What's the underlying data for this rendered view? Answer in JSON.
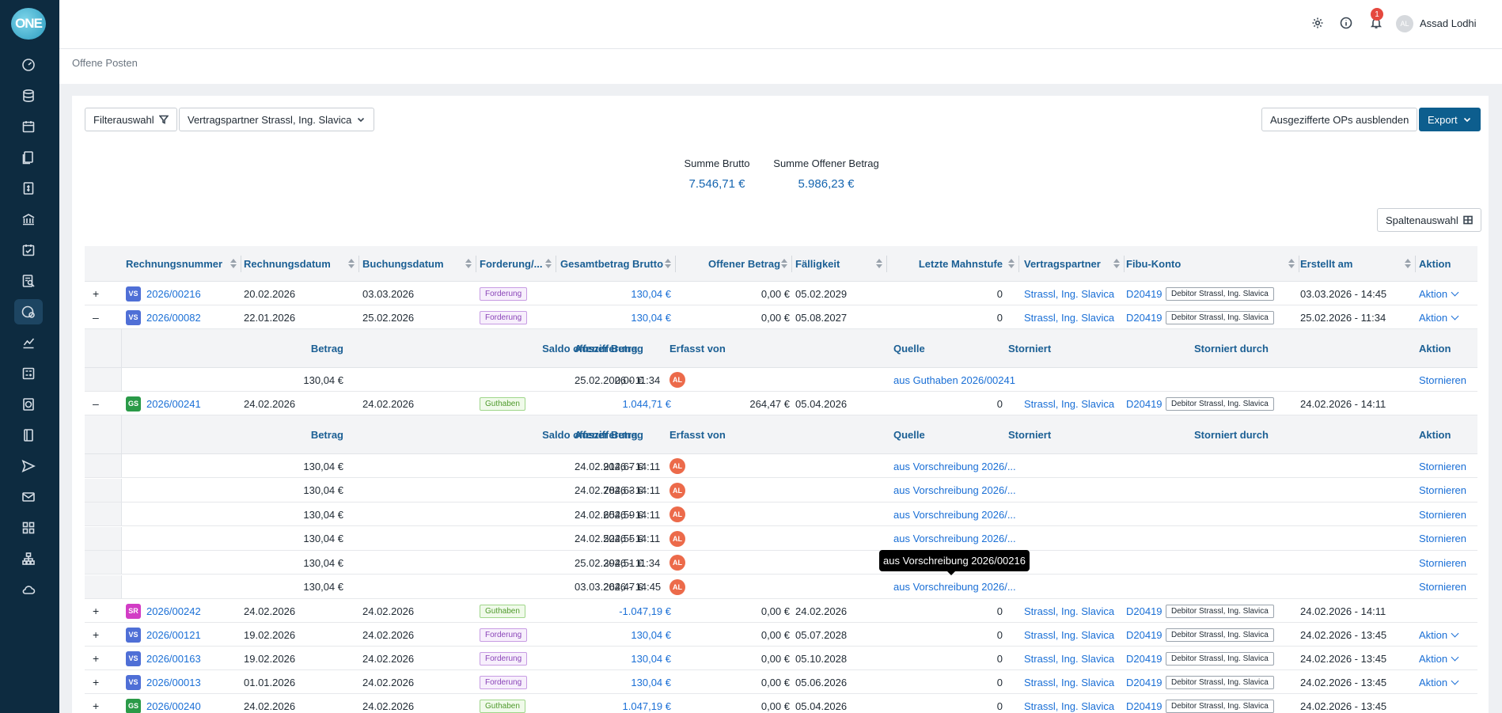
{
  "app": {
    "logo_text": "ONE"
  },
  "sidebar": {
    "icons": [
      "dashboard-icon",
      "database-icon",
      "calendar-icon",
      "documents-icon",
      "invoice-icon",
      "bank-icon",
      "calendar-check-icon",
      "search-report-icon",
      "open-items-icon",
      "chart-icon",
      "calculator-icon",
      "dollar-doc-icon",
      "book-icon",
      "send-icon",
      "mail-icon",
      "apps-icon",
      "org-chart-icon",
      "cloud-icon"
    ]
  },
  "topbar": {
    "notification_count": "1",
    "user_initials": "AL",
    "user_name": "Assad Lodhi"
  },
  "breadcrumb": "Offene Posten",
  "toolbar": {
    "filter_label": "Filterauswahl",
    "partner_filter": "Vertragspartner Strassl, Ing. Slavica",
    "hide_label": "Ausgezifferte OPs ausblenden",
    "export_label": "Export",
    "columns_label": "Spaltenauswahl"
  },
  "summary": {
    "brutto_label": "Summe Brutto",
    "brutto_value": "7.546,71 €",
    "offen_label": "Summe Offener Betrag",
    "offen_value": "5.986,23 €"
  },
  "columns": {
    "nr": "Rechnungsnummer",
    "rdatum": "Rechnungsdatum",
    "bdatum": "Buchungsdatum",
    "ford": "Forderung/...",
    "brutto": "Gesamtbetrag Brutto",
    "offen": "Offener Betrag",
    "faellig": "Fälligkeit",
    "mahn": "Letzte Mahnstufe",
    "partner": "Vertragspartner",
    "fibu": "Fibu-Konto",
    "erstellt": "Erstellt am",
    "aktion": "Aktion"
  },
  "sub_columns": {
    "betrag": "Betrag",
    "saldo": "Saldo offener Betrag",
    "ausz": "Auszifferung",
    "erfasst": "Erfasst von",
    "quelle": "Quelle",
    "storniert": "Storniert",
    "durch": "Storniert durch",
    "aktion": "Aktion"
  },
  "rows": [
    {
      "exp": "+",
      "typ": "VS",
      "nr": "2026/00216",
      "rdatum": "20.02.2026",
      "bdatum": "03.03.2026",
      "ford": "Forderung",
      "brutto": "130,04 €",
      "offen": "0,00 €",
      "faellig": "05.02.2029",
      "mahn": "0",
      "partner": "Strassl, Ing. Slavica",
      "fibu": "D20419",
      "debitor": "Debitor Strassl, Ing. Slavica",
      "erstellt": "03.03.2026 - 14:45",
      "aktion": "Aktion"
    },
    {
      "exp": "–",
      "typ": "VS",
      "nr": "2026/00082",
      "rdatum": "22.01.2026",
      "bdatum": "25.02.2026",
      "ford": "Forderung",
      "brutto": "130,04 €",
      "offen": "0,00 €",
      "faellig": "05.08.2027",
      "mahn": "0",
      "partner": "Strassl, Ing. Slavica",
      "fibu": "D20419",
      "debitor": "Debitor Strassl, Ing. Slavica",
      "erstellt": "25.02.2026 - 11:34",
      "aktion": "Aktion"
    },
    {
      "exp": "–",
      "typ": "GS",
      "nr": "2026/00241",
      "rdatum": "24.02.2026",
      "bdatum": "24.02.2026",
      "ford": "Guthaben",
      "brutto": "1.044,71 €",
      "offen": "264,47 €",
      "faellig": "05.04.2026",
      "mahn": "0",
      "partner": "Strassl, Ing. Slavica",
      "fibu": "D20419",
      "debitor": "Debitor Strassl, Ing. Slavica",
      "erstellt": "24.02.2026 - 14:11",
      "aktion": ""
    },
    {
      "exp": "+",
      "typ": "SR",
      "nr": "2026/00242",
      "rdatum": "24.02.2026",
      "bdatum": "24.02.2026",
      "ford": "Guthaben",
      "brutto": "-1.047,19 €",
      "offen": "0,00 €",
      "faellig": "24.02.2026",
      "mahn": "0",
      "partner": "Strassl, Ing. Slavica",
      "fibu": "D20419",
      "debitor": "Debitor Strassl, Ing. Slavica",
      "erstellt": "24.02.2026 - 14:11",
      "aktion": ""
    },
    {
      "exp": "+",
      "typ": "VS",
      "nr": "2026/00121",
      "rdatum": "19.02.2026",
      "bdatum": "24.02.2026",
      "ford": "Forderung",
      "brutto": "130,04 €",
      "offen": "0,00 €",
      "faellig": "05.07.2028",
      "mahn": "0",
      "partner": "Strassl, Ing. Slavica",
      "fibu": "D20419",
      "debitor": "Debitor Strassl, Ing. Slavica",
      "erstellt": "24.02.2026 - 13:45",
      "aktion": "Aktion"
    },
    {
      "exp": "+",
      "typ": "VS",
      "nr": "2026/00163",
      "rdatum": "19.02.2026",
      "bdatum": "24.02.2026",
      "ford": "Forderung",
      "brutto": "130,04 €",
      "offen": "0,00 €",
      "faellig": "05.10.2028",
      "mahn": "0",
      "partner": "Strassl, Ing. Slavica",
      "fibu": "D20419",
      "debitor": "Debitor Strassl, Ing. Slavica",
      "erstellt": "24.02.2026 - 13:45",
      "aktion": "Aktion"
    },
    {
      "exp": "+",
      "typ": "VS",
      "nr": "2026/00013",
      "rdatum": "01.01.2026",
      "bdatum": "24.02.2026",
      "ford": "Forderung",
      "brutto": "130,04 €",
      "offen": "0,00 €",
      "faellig": "05.06.2026",
      "mahn": "0",
      "partner": "Strassl, Ing. Slavica",
      "fibu": "D20419",
      "debitor": "Debitor Strassl, Ing. Slavica",
      "erstellt": "24.02.2026 - 13:45",
      "aktion": "Aktion"
    },
    {
      "exp": "+",
      "typ": "GS",
      "nr": "2026/00240",
      "rdatum": "24.02.2026",
      "bdatum": "24.02.2026",
      "ford": "Guthaben",
      "brutto": "1.047,19 €",
      "offen": "0,00 €",
      "faellig": "05.04.2026",
      "mahn": "0",
      "partner": "Strassl, Ing. Slavica",
      "fibu": "D20419",
      "debitor": "Debitor Strassl, Ing. Slavica",
      "erstellt": "24.02.2026 - 13:45",
      "aktion": ""
    }
  ],
  "sub_rows_82": [
    {
      "betrag": "130,04 €",
      "saldo": "0,00 €",
      "ausz": "25.02.2026 - 11:34",
      "erfasst": "AL",
      "quelle": "aus Guthaben 2026/00241",
      "aktion": "Stornieren"
    }
  ],
  "sub_rows_241": [
    {
      "betrag": "130,04 €",
      "saldo": "914,67 €",
      "ausz": "24.02.2026 - 14:11",
      "erfasst": "AL",
      "quelle": "aus Vorschreibung 2026/...",
      "aktion": "Stornieren"
    },
    {
      "betrag": "130,04 €",
      "saldo": "784,63 €",
      "ausz": "24.02.2026 - 14:11",
      "erfasst": "AL",
      "quelle": "aus Vorschreibung 2026/...",
      "aktion": "Stornieren"
    },
    {
      "betrag": "130,04 €",
      "saldo": "654,59 €",
      "ausz": "24.02.2026 - 14:11",
      "erfasst": "AL",
      "quelle": "aus Vorschreibung 2026/...",
      "aktion": "Stornieren"
    },
    {
      "betrag": "130,04 €",
      "saldo": "524,55 €",
      "ausz": "24.02.2026 - 14:11",
      "erfasst": "AL",
      "quelle": "aus Vorschreibung 2026/...",
      "aktion": "Stornieren"
    },
    {
      "betrag": "130,04 €",
      "saldo": "394,51 €",
      "ausz": "25.02.2026 - 11:34",
      "erfasst": "AL",
      "quelle": "aus Vorschreibung 2026/...",
      "aktion": "Stornieren"
    },
    {
      "betrag": "130,04 €",
      "saldo": "264,47 €",
      "ausz": "03.03.2026 - 14:45",
      "erfasst": "AL",
      "quelle": "aus Vorschreibung 2026/...",
      "aktion": "Stornieren"
    }
  ],
  "tooltip": "aus Vorschreibung 2026/00216",
  "colors": {
    "sidebar": "#0d2b40",
    "primary": "#0d5e8e",
    "link": "#1a6fd6"
  }
}
